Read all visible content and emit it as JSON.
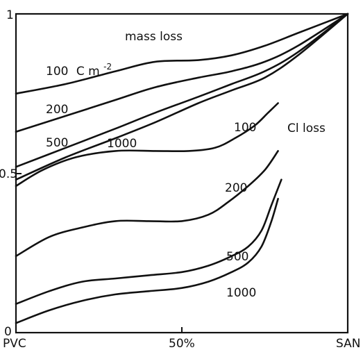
{
  "chart_data": {
    "type": "line",
    "xlim": [
      0,
      100
    ],
    "ylim": [
      0,
      1
    ],
    "x_ticks": [
      {
        "value": 0,
        "label": "PVC"
      },
      {
        "value": 50,
        "label": "50%"
      },
      {
        "value": 100,
        "label": "SAN"
      }
    ],
    "y_ticks": [
      {
        "value": 0,
        "label": "0"
      },
      {
        "value": 0.5,
        "label": "0.5"
      },
      {
        "value": 1,
        "label": "1"
      }
    ],
    "grid": false,
    "annotations": {
      "mass_loss": "mass loss",
      "cl_loss": "Cl loss",
      "unit": "C m",
      "unit_exp": "-2"
    },
    "series": [
      {
        "group": "mass loss",
        "label": "100",
        "x": [
          0,
          15,
          30,
          42,
          55,
          65,
          75,
          85,
          100
        ],
        "y": [
          0.75,
          0.78,
          0.82,
          0.85,
          0.855,
          0.87,
          0.9,
          0.94,
          1.0
        ]
      },
      {
        "group": "mass loss",
        "label": "200",
        "x": [
          0,
          15,
          30,
          42,
          55,
          65,
          75,
          85,
          100
        ],
        "y": [
          0.63,
          0.68,
          0.73,
          0.77,
          0.8,
          0.82,
          0.85,
          0.9,
          1.0
        ]
      },
      {
        "group": "mass loss",
        "label": "500",
        "x": [
          0,
          15,
          30,
          42,
          55,
          65,
          75,
          85,
          100
        ],
        "y": [
          0.52,
          0.58,
          0.64,
          0.69,
          0.74,
          0.78,
          0.82,
          0.88,
          1.0
        ]
      },
      {
        "group": "mass loss",
        "label": "1000",
        "x": [
          0,
          15,
          30,
          42,
          55,
          65,
          75,
          85,
          100
        ],
        "y": [
          0.48,
          0.55,
          0.61,
          0.66,
          0.72,
          0.76,
          0.8,
          0.87,
          1.0
        ]
      },
      {
        "group": "Cl loss",
        "label": "100",
        "x": [
          0,
          8,
          18,
          30,
          42,
          52,
          60,
          66,
          72,
          76,
          79
        ],
        "y": [
          0.46,
          0.51,
          0.55,
          0.57,
          0.57,
          0.57,
          0.58,
          0.61,
          0.65,
          0.69,
          0.72
        ]
      },
      {
        "group": "Cl loss",
        "label": "200",
        "x": [
          0,
          10,
          20,
          30,
          40,
          50,
          58,
          64,
          70,
          75,
          79
        ],
        "y": [
          0.24,
          0.3,
          0.33,
          0.35,
          0.35,
          0.35,
          0.37,
          0.41,
          0.46,
          0.51,
          0.57
        ]
      },
      {
        "group": "Cl loss",
        "label": "500",
        "x": [
          0,
          10,
          20,
          30,
          40,
          50,
          58,
          65,
          70,
          74,
          77,
          80
        ],
        "y": [
          0.09,
          0.13,
          0.16,
          0.17,
          0.18,
          0.19,
          0.21,
          0.24,
          0.27,
          0.32,
          0.4,
          0.48
        ]
      },
      {
        "group": "Cl loss",
        "label": "1000",
        "x": [
          0,
          10,
          20,
          30,
          40,
          50,
          58,
          65,
          70,
          74,
          77,
          79
        ],
        "y": [
          0.03,
          0.07,
          0.1,
          0.12,
          0.13,
          0.14,
          0.16,
          0.19,
          0.22,
          0.27,
          0.35,
          0.42
        ]
      }
    ]
  }
}
